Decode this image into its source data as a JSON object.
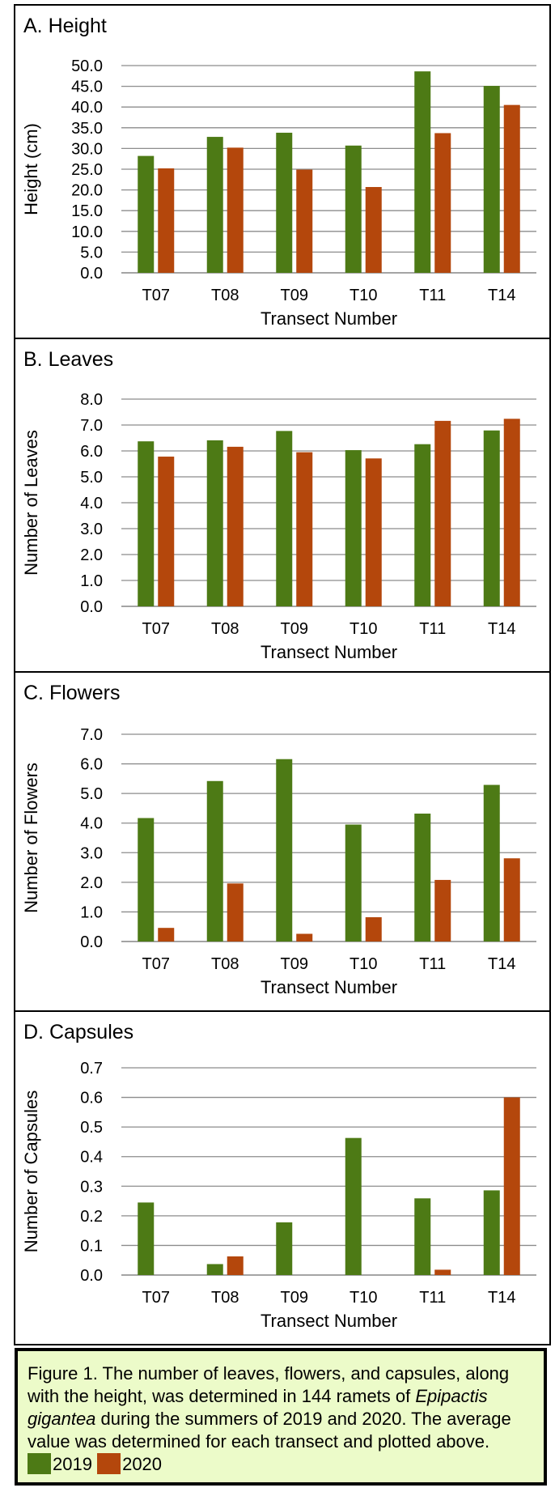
{
  "chart_data": [
    {
      "type": "bar",
      "title": "A. Height",
      "xlabel": "Transect Number",
      "ylabel": "Height (cm)",
      "ylim": [
        0,
        50
      ],
      "ytick_step": 5,
      "ytick_decimals": 1,
      "grid": true,
      "categories": [
        "T07",
        "T08",
        "T09",
        "T10",
        "T11",
        "T14"
      ],
      "series": [
        {
          "name": "2019",
          "values": [
            28.2,
            32.8,
            33.8,
            30.7,
            48.6,
            45.1
          ]
        },
        {
          "name": "2020",
          "values": [
            25.2,
            30.2,
            24.9,
            20.7,
            33.7,
            40.5
          ]
        }
      ]
    },
    {
      "type": "bar",
      "title": "B. Leaves",
      "xlabel": "Transect Number",
      "ylabel": "Number of Leaves",
      "ylim": [
        0,
        8
      ],
      "ytick_step": 1,
      "ytick_decimals": 1,
      "grid": true,
      "categories": [
        "T07",
        "T08",
        "T09",
        "T10",
        "T11",
        "T14"
      ],
      "series": [
        {
          "name": "2019",
          "values": [
            6.37,
            6.41,
            6.77,
            6.03,
            6.26,
            6.79
          ]
        },
        {
          "name": "2020",
          "values": [
            5.78,
            6.16,
            5.95,
            5.71,
            7.16,
            7.24
          ]
        }
      ]
    },
    {
      "type": "bar",
      "title": "C. Flowers",
      "xlabel": "Transect Number",
      "ylabel": "Number of Flowers",
      "ylim": [
        0,
        7
      ],
      "ytick_step": 1,
      "ytick_decimals": 1,
      "grid": true,
      "categories": [
        "T07",
        "T08",
        "T09",
        "T10",
        "T11",
        "T14"
      ],
      "series": [
        {
          "name": "2019",
          "values": [
            4.17,
            5.42,
            6.16,
            3.95,
            4.32,
            5.29
          ]
        },
        {
          "name": "2020",
          "values": [
            0.46,
            1.96,
            0.26,
            0.82,
            2.08,
            2.81
          ]
        }
      ]
    },
    {
      "type": "bar",
      "title": "D. Capsules",
      "xlabel": "Transect Number",
      "ylabel": "Number of Capsules",
      "ylim": [
        0,
        0.7
      ],
      "ytick_step": 0.1,
      "ytick_decimals": 1,
      "grid": true,
      "categories": [
        "T07",
        "T08",
        "T09",
        "T10",
        "T11",
        "T14"
      ],
      "series": [
        {
          "name": "2019",
          "values": [
            0.245,
            0.037,
            0.178,
            0.463,
            0.259,
            0.286
          ]
        },
        {
          "name": "2020",
          "values": [
            0.0,
            0.063,
            0.0,
            0.0,
            0.018,
            0.6
          ]
        }
      ]
    }
  ],
  "colors": {
    "2019": "#4d7a15",
    "2020": "#b4470c",
    "caption_bg": "#ecfbc9",
    "grid": "#8c8c8c"
  },
  "caption": {
    "before": "Figure 1. The number of leaves, flowers, and capsules, along with the height, was determined in 144 ramets of ",
    "species": "Epipactis gigantea",
    "after": " during the summers of 2019 and 2020. The average value was determined for each transect and plotted above.",
    "legend": [
      {
        "label": "2019",
        "color": "#4d7a15"
      },
      {
        "label": "2020",
        "color": "#b4470c"
      }
    ]
  }
}
